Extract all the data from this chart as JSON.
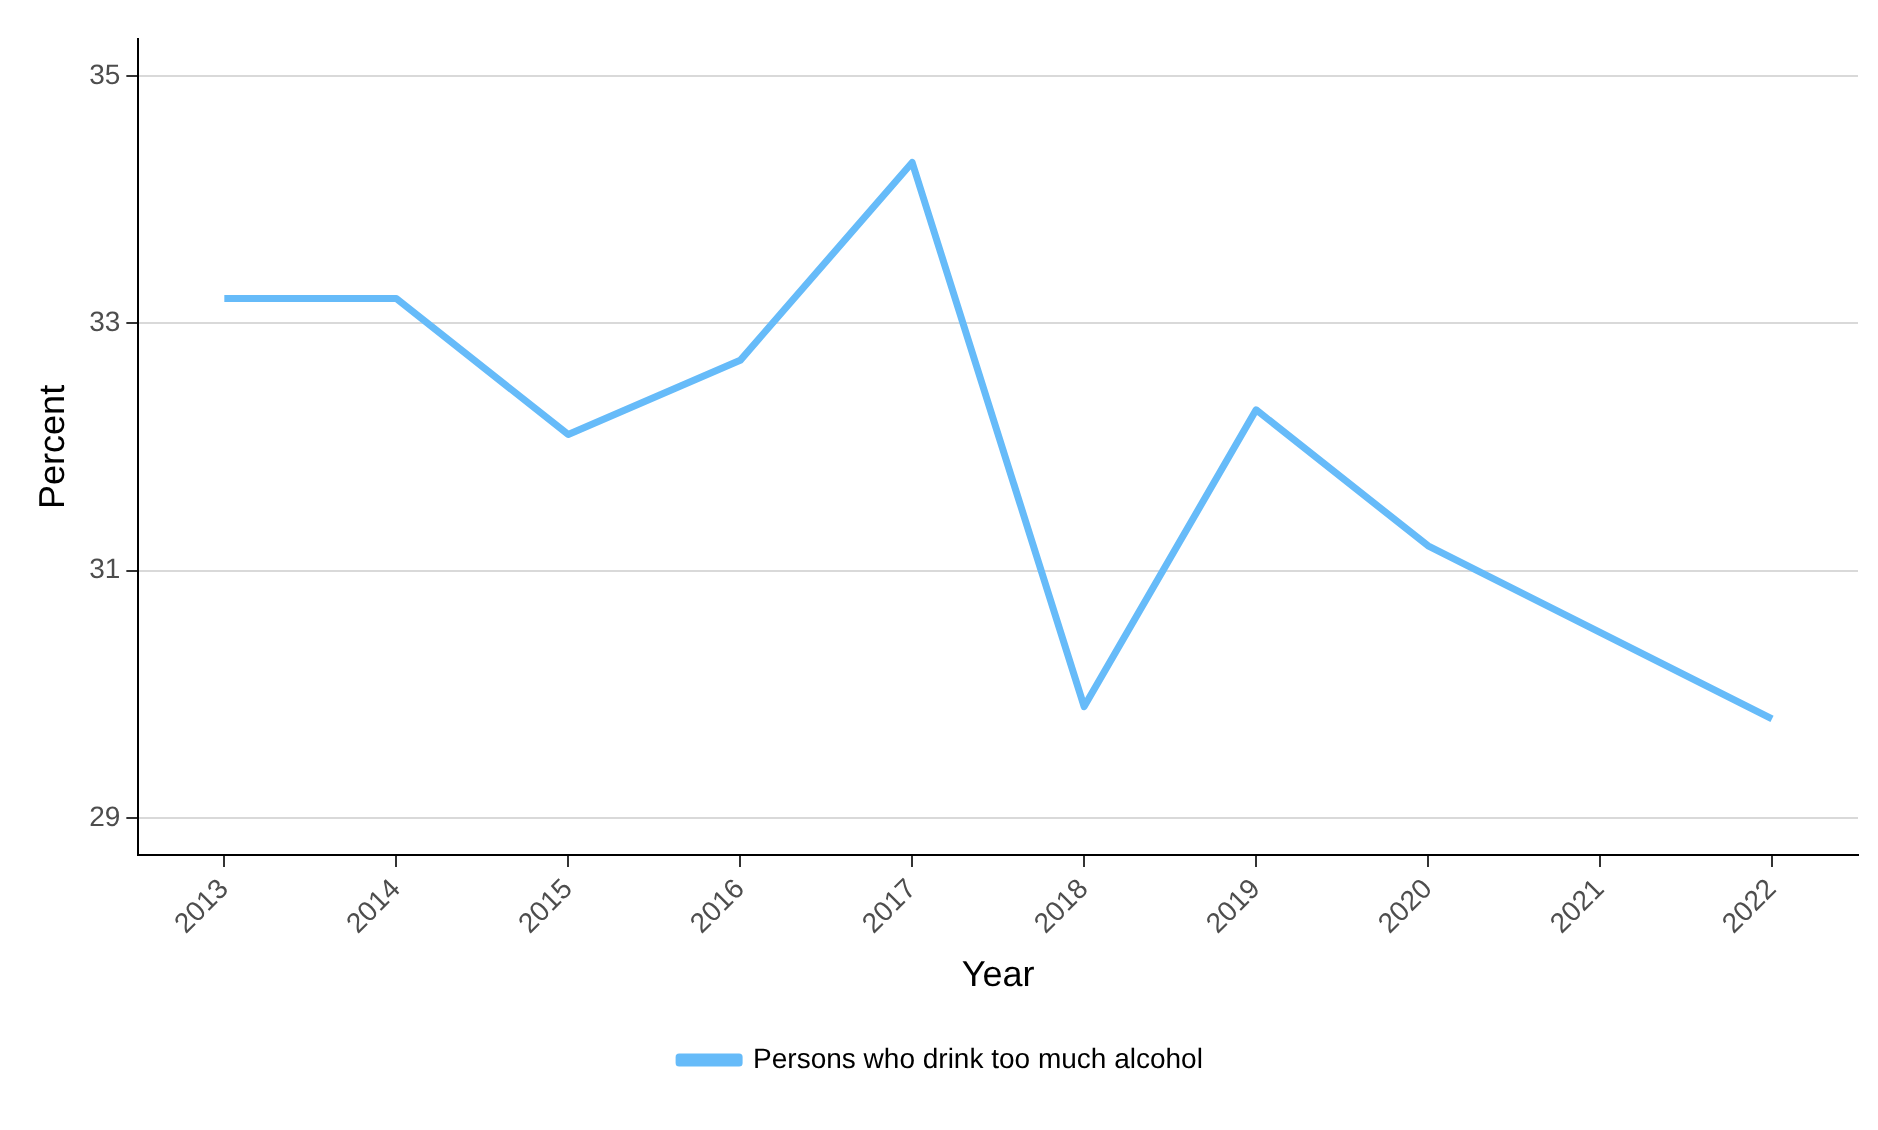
{
  "chart_data": {
    "type": "line",
    "xlabel": "Year",
    "ylabel": "Percent",
    "categories": [
      "2013",
      "2014",
      "2015",
      "2016",
      "2017",
      "2018",
      "2019",
      "2020",
      "2021",
      "2022"
    ],
    "series": [
      {
        "name": "Persons who drink too much alcohol",
        "color": "#66bbf9",
        "values": [
          33.2,
          33.2,
          32.1,
          32.7,
          34.3,
          29.9,
          32.3,
          31.2,
          30.5,
          29.8
        ]
      }
    ],
    "ylim": [
      28.7,
      35.3
    ],
    "yticks": [
      29,
      31,
      33,
      35
    ],
    "grid": "y",
    "legend": "bottom",
    "marker": "none",
    "line_style": "solid"
  }
}
